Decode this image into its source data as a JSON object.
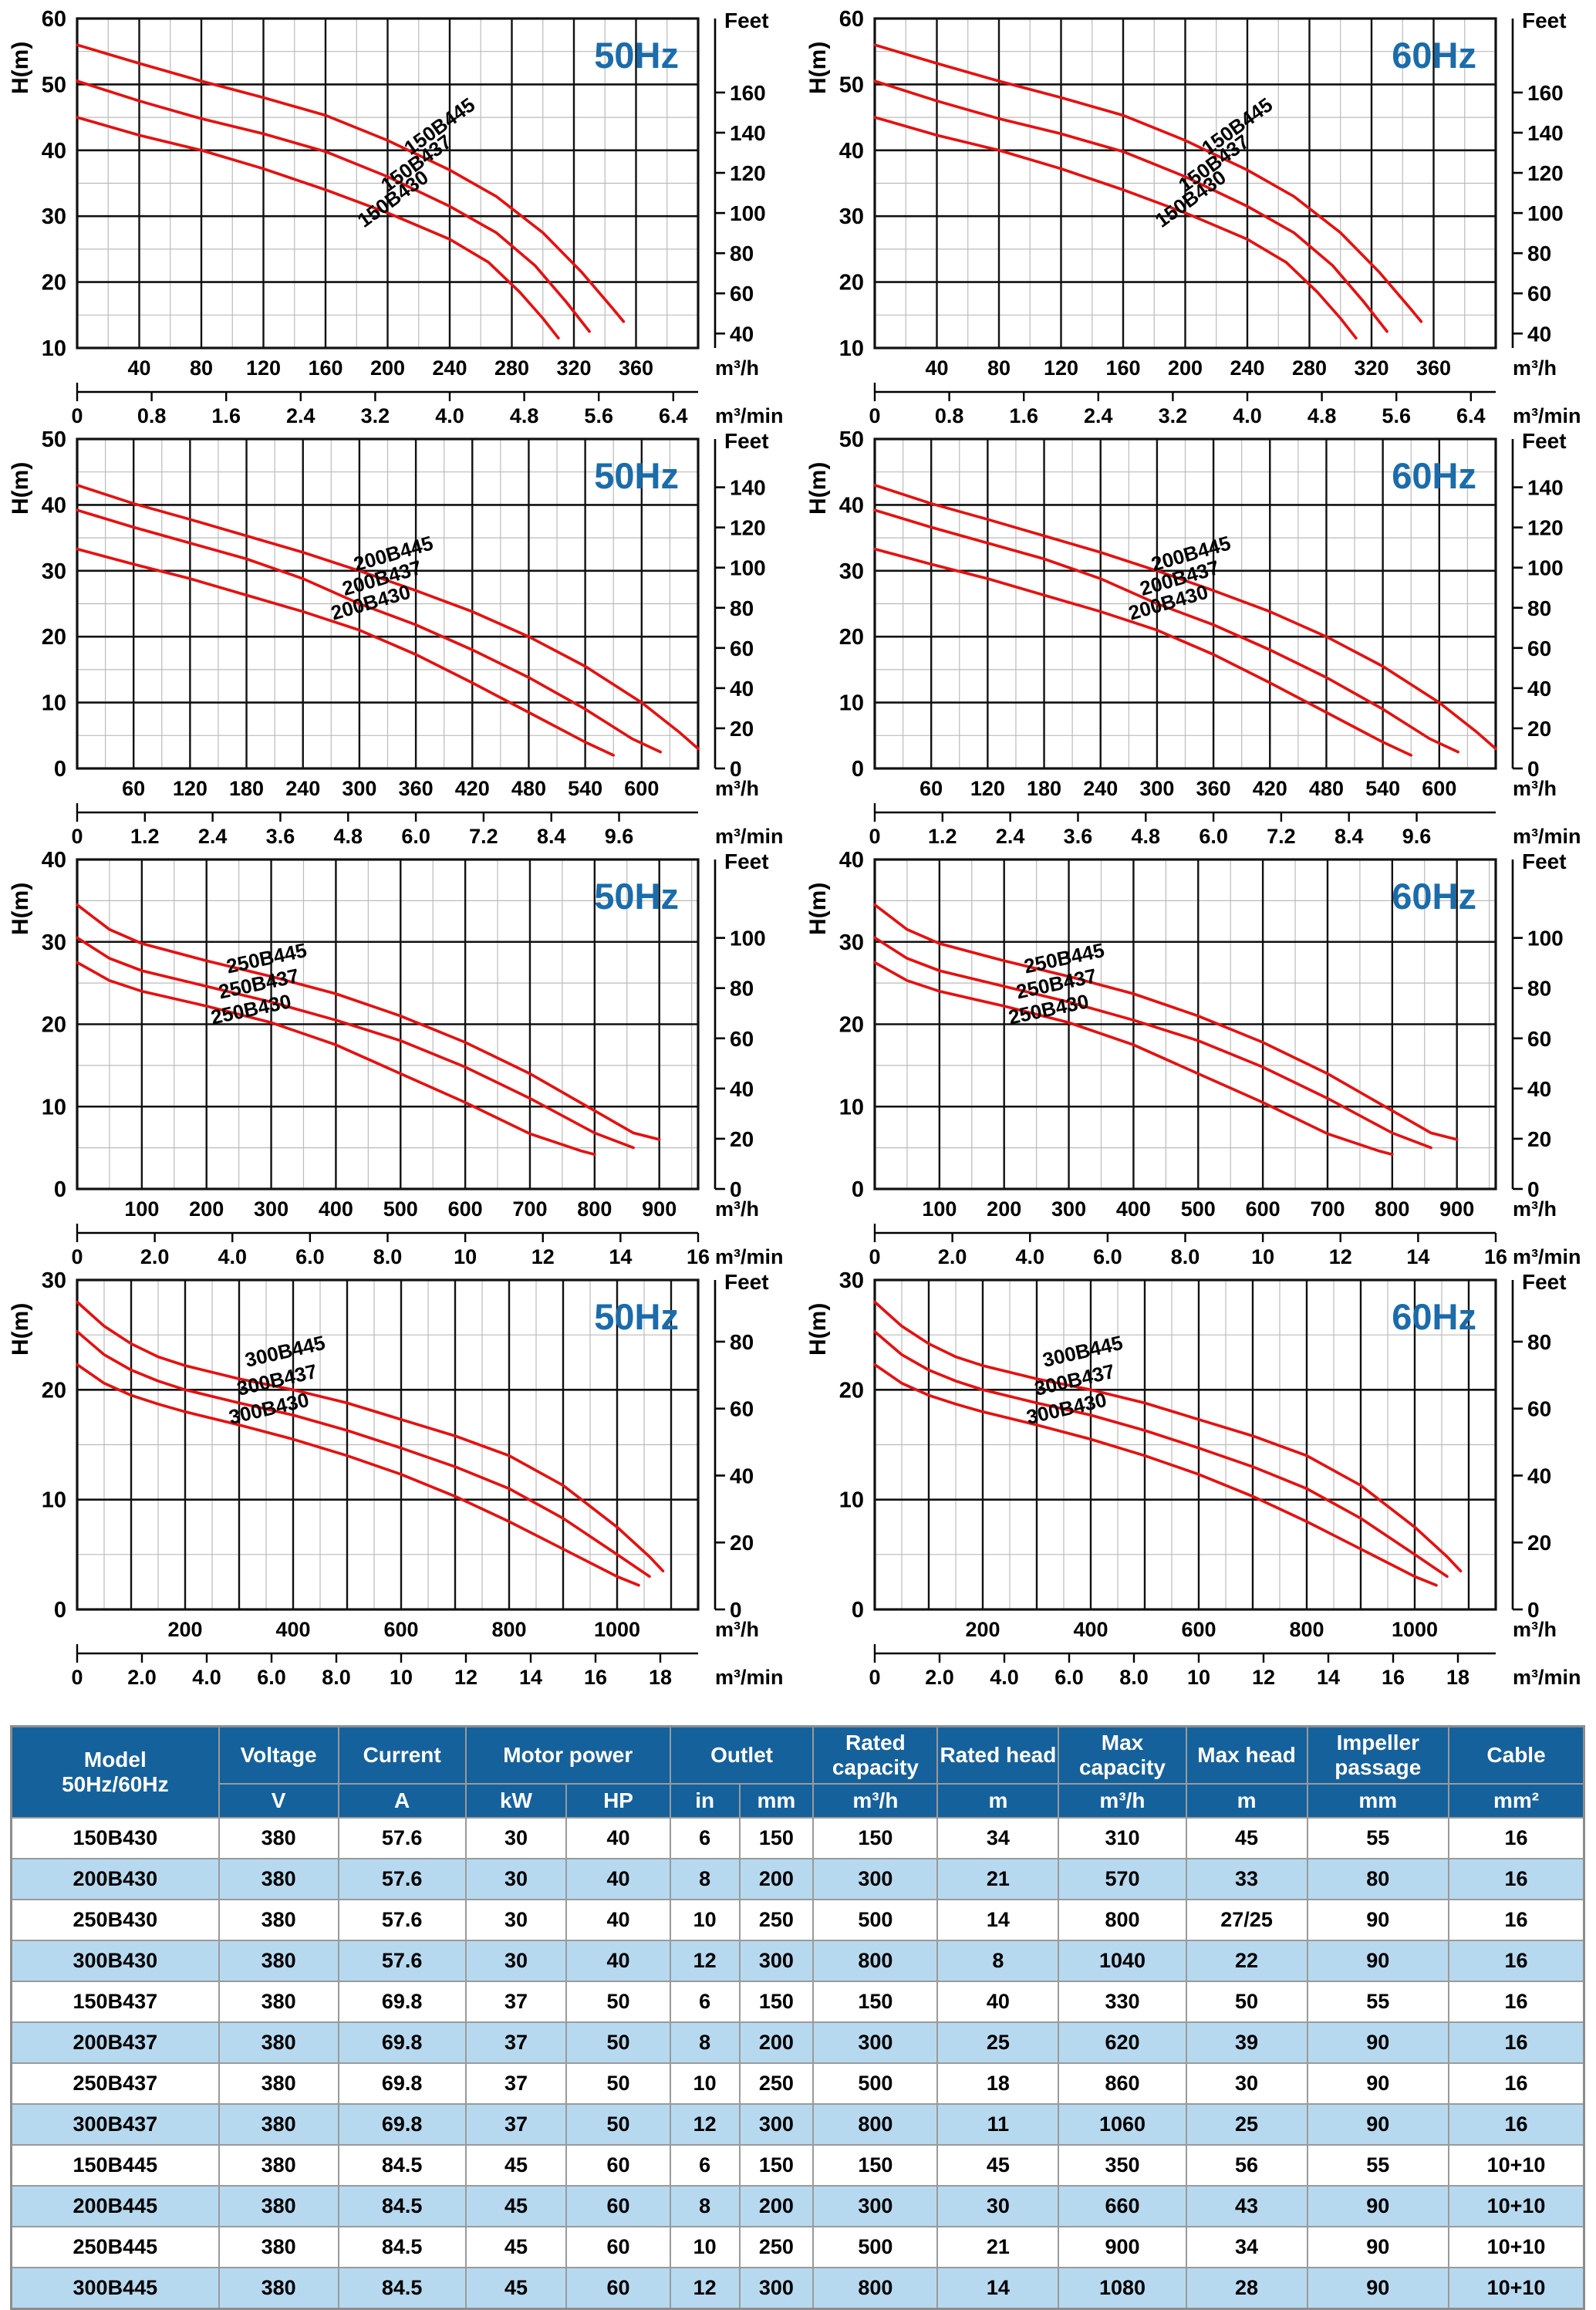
{
  "colors": {
    "curve_red": "#e80f0f",
    "hz_blue": "#1a6cab",
    "header_blue": "#15619c",
    "alt_row_blue": "#b7d9ef",
    "grid_major": "#111111",
    "grid_minor": "#bbbbbb"
  },
  "chart_data": {
    "type": "line",
    "titles_per_row": [
      "50Hz",
      "60Hz"
    ],
    "charts": [
      {
        "id": "150B",
        "ylabel": "H(m)",
        "feet_label": "Feet",
        "unit_h": "m³/h",
        "unit_min": "m³/min",
        "ymin": 10,
        "ymax": 60,
        "y_major": 10,
        "y_minor": 5,
        "xmax": 400,
        "x_major": 40,
        "x_minor": 20,
        "h_ticks": [
          40,
          80,
          120,
          160,
          200,
          240,
          280,
          320,
          360
        ],
        "min_ticks": [
          "0",
          "0.8",
          "1.6",
          "2.4",
          "3.2",
          "4.0",
          "4.8",
          "5.6",
          "6.4"
        ],
        "min_scale": 60,
        "feet_ticks": [
          160,
          140,
          120,
          100,
          80,
          60,
          40
        ],
        "label_angle": -36,
        "series": [
          {
            "name": "150B445",
            "label_at": [
              236,
              42.8
            ],
            "points": [
              [
                0,
                56
              ],
              [
                40,
                53.2
              ],
              [
                80,
                50.5
              ],
              [
                120,
                48
              ],
              [
                160,
                45.3
              ],
              [
                200,
                41.5
              ],
              [
                240,
                37
              ],
              [
                270,
                33
              ],
              [
                300,
                27.5
              ],
              [
                325,
                21.5
              ],
              [
                345,
                16
              ],
              [
                352,
                14
              ]
            ]
          },
          {
            "name": "150B437",
            "label_at": [
              221,
              37.2
            ],
            "points": [
              [
                0,
                50.5
              ],
              [
                40,
                47.5
              ],
              [
                80,
                44.8
              ],
              [
                120,
                42.5
              ],
              [
                160,
                39.8
              ],
              [
                200,
                36
              ],
              [
                240,
                31.5
              ],
              [
                270,
                27.5
              ],
              [
                295,
                22.5
              ],
              [
                315,
                17
              ],
              [
                330,
                12.5
              ]
            ]
          },
          {
            "name": "150B430",
            "label_at": [
              206,
              31.8
            ],
            "points": [
              [
                0,
                45
              ],
              [
                40,
                42.3
              ],
              [
                80,
                40
              ],
              [
                120,
                37.2
              ],
              [
                160,
                34
              ],
              [
                200,
                30.5
              ],
              [
                240,
                26.5
              ],
              [
                265,
                23
              ],
              [
                285,
                18.5
              ],
              [
                300,
                14.5
              ],
              [
                310,
                11.5
              ]
            ]
          }
        ]
      },
      {
        "id": "200B",
        "ylabel": "H(m)",
        "feet_label": "Feet",
        "unit_h": "m³/h",
        "unit_min": "m³/min",
        "ymin": 0,
        "ymax": 50,
        "y_major": 10,
        "y_minor": 5,
        "xmax": 660,
        "x_major": 60,
        "x_minor": 30,
        "h_ticks": [
          60,
          120,
          180,
          240,
          300,
          360,
          420,
          480,
          540,
          600
        ],
        "min_ticks": [
          "0",
          "1.2",
          "2.4",
          "3.6",
          "4.8",
          "6.0",
          "7.2",
          "8.4",
          "9.6"
        ],
        "min_scale": 60,
        "feet_ticks": [
          140,
          120,
          100,
          80,
          60,
          40,
          20,
          0
        ],
        "label_angle": -16,
        "series": [
          {
            "name": "200B445",
            "label_at": [
              338,
              31.6
            ],
            "points": [
              [
                0,
                43
              ],
              [
                60,
                40.2
              ],
              [
                120,
                37.8
              ],
              [
                180,
                35.3
              ],
              [
                240,
                32.8
              ],
              [
                300,
                30
              ],
              [
                360,
                27
              ],
              [
                420,
                23.8
              ],
              [
                480,
                20
              ],
              [
                540,
                15.5
              ],
              [
                600,
                10
              ],
              [
                640,
                5.5
              ],
              [
                660,
                3
              ]
            ]
          },
          {
            "name": "200B437",
            "label_at": [
              326,
              27.9
            ],
            "points": [
              [
                0,
                39.2
              ],
              [
                60,
                36.6
              ],
              [
                120,
                34.2
              ],
              [
                180,
                31.8
              ],
              [
                240,
                28.8
              ],
              [
                300,
                25
              ],
              [
                360,
                21.8
              ],
              [
                420,
                18
              ],
              [
                480,
                13.8
              ],
              [
                540,
                9
              ],
              [
                590,
                4.5
              ],
              [
                620,
                2.5
              ]
            ]
          },
          {
            "name": "200B430",
            "label_at": [
              314,
              24.2
            ],
            "points": [
              [
                0,
                33.3
              ],
              [
                60,
                31
              ],
              [
                120,
                28.8
              ],
              [
                180,
                26.3
              ],
              [
                240,
                23.8
              ],
              [
                300,
                21
              ],
              [
                360,
                17.3
              ],
              [
                420,
                13
              ],
              [
                480,
                8.5
              ],
              [
                540,
                4
              ],
              [
                570,
                2
              ]
            ]
          }
        ]
      },
      {
        "id": "250B",
        "ylabel": "H(m)",
        "feet_label": "Feet",
        "unit_h": "m³/h",
        "unit_min": "m³/min",
        "ymin": 0,
        "ymax": 40,
        "y_major": 10,
        "y_minor": 5,
        "xmax": 960,
        "x_major": 100,
        "x_minor": 50,
        "h_ticks": [
          100,
          200,
          300,
          400,
          500,
          600,
          700,
          800,
          900
        ],
        "min_ticks": [
          "0",
          "2.0",
          "4.0",
          "6.0",
          "8.0",
          "10",
          "12",
          "14",
          "16"
        ],
        "min_scale": 60,
        "feet_ticks": [
          100,
          80,
          60,
          40,
          20,
          0
        ],
        "label_angle": -12,
        "series": [
          {
            "name": "250B445",
            "label_at": [
              295,
              27.2
            ],
            "points": [
              [
                0,
                34.5
              ],
              [
                50,
                31.5
              ],
              [
                100,
                29.8
              ],
              [
                200,
                27.7
              ],
              [
                300,
                25.8
              ],
              [
                400,
                23.7
              ],
              [
                500,
                21
              ],
              [
                600,
                17.8
              ],
              [
                700,
                14
              ],
              [
                800,
                9.5
              ],
              [
                860,
                6.8
              ],
              [
                900,
                6
              ]
            ]
          },
          {
            "name": "250B437",
            "label_at": [
              283,
              24.1
            ],
            "points": [
              [
                0,
                30.5
              ],
              [
                50,
                28
              ],
              [
                100,
                26.5
              ],
              [
                200,
                24.6
              ],
              [
                300,
                22.7
              ],
              [
                400,
                20.5
              ],
              [
                500,
                18
              ],
              [
                600,
                14.8
              ],
              [
                700,
                11
              ],
              [
                800,
                6.8
              ],
              [
                860,
                5
              ]
            ]
          },
          {
            "name": "250B430",
            "label_at": [
              271,
              21.0
            ],
            "points": [
              [
                0,
                27.5
              ],
              [
                50,
                25.3
              ],
              [
                100,
                24
              ],
              [
                200,
                22.2
              ],
              [
                300,
                20.2
              ],
              [
                400,
                17.5
              ],
              [
                500,
                14
              ],
              [
                600,
                10.5
              ],
              [
                700,
                6.7
              ],
              [
                780,
                4.6
              ],
              [
                800,
                4.2
              ]
            ]
          }
        ]
      },
      {
        "id": "300B",
        "ylabel": "H(m)",
        "feet_label": "Feet",
        "unit_h": "m³/h",
        "unit_min": "m³/min",
        "ymin": 0,
        "ymax": 30,
        "y_major": 10,
        "y_minor": 5,
        "xmax": 1150,
        "x_major": 100,
        "x_minor": 50,
        "h_ticks": [
          200,
          400,
          600,
          800,
          1000
        ],
        "min_ticks": [
          "0",
          "2.0",
          "4.0",
          "6.0",
          "8.0",
          "10",
          "12",
          "14",
          "16",
          "18"
        ],
        "min_scale": 60,
        "feet_ticks": [
          80,
          60,
          40,
          20,
          0
        ],
        "label_angle": -13,
        "series": [
          {
            "name": "300B445",
            "label_at": [
              388,
              22.9
            ],
            "points": [
              [
                0,
                28
              ],
              [
                50,
                25.8
              ],
              [
                100,
                24.2
              ],
              [
                150,
                23
              ],
              [
                200,
                22.2
              ],
              [
                300,
                21
              ],
              [
                400,
                20
              ],
              [
                500,
                18.8
              ],
              [
                600,
                17.3
              ],
              [
                700,
                15.8
              ],
              [
                800,
                14
              ],
              [
                900,
                11.3
              ],
              [
                1000,
                7.5
              ],
              [
                1060,
                4.8
              ],
              [
                1085,
                3.5
              ]
            ]
          },
          {
            "name": "300B437",
            "label_at": [
              373,
              20.3
            ],
            "points": [
              [
                0,
                25.3
              ],
              [
                50,
                23.2
              ],
              [
                100,
                21.8
              ],
              [
                150,
                20.8
              ],
              [
                200,
                20
              ],
              [
                300,
                18.8
              ],
              [
                400,
                17.7
              ],
              [
                500,
                16.3
              ],
              [
                600,
                14.7
              ],
              [
                700,
                13
              ],
              [
                800,
                11
              ],
              [
                900,
                8.3
              ],
              [
                1000,
                5
              ],
              [
                1060,
                3
              ]
            ]
          },
          {
            "name": "300B430",
            "label_at": [
              358,
              17.7
            ],
            "points": [
              [
                0,
                22.3
              ],
              [
                50,
                20.6
              ],
              [
                100,
                19.5
              ],
              [
                150,
                18.7
              ],
              [
                200,
                18
              ],
              [
                300,
                16.8
              ],
              [
                400,
                15.5
              ],
              [
                500,
                14
              ],
              [
                600,
                12.3
              ],
              [
                700,
                10.3
              ],
              [
                800,
                8
              ],
              [
                900,
                5.5
              ],
              [
                1000,
                3
              ],
              [
                1040,
                2.2
              ]
            ]
          }
        ]
      }
    ]
  },
  "table": {
    "h_model": "Model",
    "h_model_sub": "50Hz/60Hz",
    "h_voltage": "Voltage",
    "h_current": "Current",
    "h_motor": "Motor power",
    "h_outlet": "Outlet",
    "h_rated_cap": "Rated capacity",
    "h_rated_head": "Rated head",
    "h_max_cap": "Max capacity",
    "h_max_head": "Max head",
    "h_impeller": "Impeller passage",
    "h_cable": "Cable",
    "u_voltage": "V",
    "u_current": "A",
    "u_kw": "kW",
    "u_hp": "HP",
    "u_in": "in",
    "u_mm": "mm",
    "u_rated_cap": "m³/h",
    "u_rated_head": "m",
    "u_max_cap": "m³/h",
    "u_max_head": "m",
    "u_impeller": "mm",
    "u_cable": "mm²",
    "rows": [
      [
        "150B430",
        "380",
        "57.6",
        "30",
        "40",
        "6",
        "150",
        "150",
        "34",
        "310",
        "45",
        "55",
        "16"
      ],
      [
        "200B430",
        "380",
        "57.6",
        "30",
        "40",
        "8",
        "200",
        "300",
        "21",
        "570",
        "33",
        "80",
        "16"
      ],
      [
        "250B430",
        "380",
        "57.6",
        "30",
        "40",
        "10",
        "250",
        "500",
        "14",
        "800",
        "27/25",
        "90",
        "16"
      ],
      [
        "300B430",
        "380",
        "57.6",
        "30",
        "40",
        "12",
        "300",
        "800",
        "8",
        "1040",
        "22",
        "90",
        "16"
      ],
      [
        "150B437",
        "380",
        "69.8",
        "37",
        "50",
        "6",
        "150",
        "150",
        "40",
        "330",
        "50",
        "55",
        "16"
      ],
      [
        "200B437",
        "380",
        "69.8",
        "37",
        "50",
        "8",
        "200",
        "300",
        "25",
        "620",
        "39",
        "90",
        "16"
      ],
      [
        "250B437",
        "380",
        "69.8",
        "37",
        "50",
        "10",
        "250",
        "500",
        "18",
        "860",
        "30",
        "90",
        "16"
      ],
      [
        "300B437",
        "380",
        "69.8",
        "37",
        "50",
        "12",
        "300",
        "800",
        "11",
        "1060",
        "25",
        "90",
        "16"
      ],
      [
        "150B445",
        "380",
        "84.5",
        "45",
        "60",
        "6",
        "150",
        "150",
        "45",
        "350",
        "56",
        "55",
        "10+10"
      ],
      [
        "200B445",
        "380",
        "84.5",
        "45",
        "60",
        "8",
        "200",
        "300",
        "30",
        "660",
        "43",
        "90",
        "10+10"
      ],
      [
        "250B445",
        "380",
        "84.5",
        "45",
        "60",
        "10",
        "250",
        "500",
        "21",
        "900",
        "34",
        "90",
        "10+10"
      ],
      [
        "300B445",
        "380",
        "84.5",
        "45",
        "60",
        "12",
        "300",
        "800",
        "14",
        "1080",
        "28",
        "90",
        "10+10"
      ]
    ]
  }
}
